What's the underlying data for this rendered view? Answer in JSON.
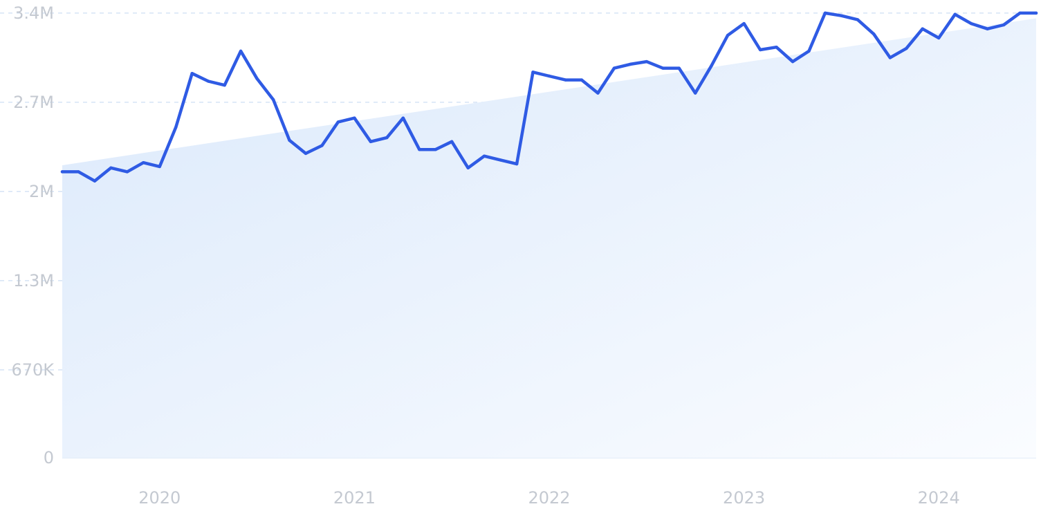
{
  "chart_data": {
    "type": "line",
    "title": "",
    "xlabel": "",
    "ylabel": "",
    "ylim": [
      0,
      3400000
    ],
    "y_ticks": [
      {
        "value": 0,
        "label": "0"
      },
      {
        "value": 670000,
        "label": "670K"
      },
      {
        "value": 1350000,
        "label": "1.3M"
      },
      {
        "value": 2030000,
        "label": "2M"
      },
      {
        "value": 2710000,
        "label": "2.7M"
      },
      {
        "value": 3390000,
        "label": "3.4M"
      }
    ],
    "x_range": [
      "2019-07",
      "2024-07"
    ],
    "x_ticks": [
      {
        "value": "2020-01",
        "label": "2020"
      },
      {
        "value": "2021-01",
        "label": "2021"
      },
      {
        "value": "2022-01",
        "label": "2022"
      },
      {
        "value": "2023-01",
        "label": "2023"
      },
      {
        "value": "2024-01",
        "label": "2024"
      }
    ],
    "grid": true,
    "legend": "none",
    "colors": {
      "line": "#2f5be4",
      "trend_fill_start": "#dbe9fb",
      "trend_fill_end": "#fafcff",
      "grid": "#d5e3f5",
      "tick_text": "#c4c9d1"
    },
    "trend": {
      "start": {
        "x": "2019-07",
        "y": 2230000
      },
      "end": {
        "x": "2024-07",
        "y": 3350000
      }
    },
    "series": [
      {
        "x": [
          "2019-07",
          "2019-08",
          "2019-09",
          "2019-10",
          "2019-11",
          "2019-12",
          "2020-01",
          "2020-02",
          "2020-03",
          "2020-04",
          "2020-05",
          "2020-06",
          "2020-07",
          "2020-08",
          "2020-09",
          "2020-10",
          "2020-11",
          "2020-12",
          "2021-01",
          "2021-02",
          "2021-03",
          "2021-04",
          "2021-05",
          "2021-06",
          "2021-07",
          "2021-08",
          "2021-09",
          "2021-10",
          "2021-11",
          "2021-12",
          "2022-01",
          "2022-02",
          "2022-03",
          "2022-04",
          "2022-05",
          "2022-06",
          "2022-07",
          "2022-08",
          "2022-09",
          "2022-10",
          "2022-11",
          "2022-12",
          "2023-01",
          "2023-02",
          "2023-03",
          "2023-04",
          "2023-05",
          "2023-06",
          "2023-07",
          "2023-08",
          "2023-09",
          "2023-10",
          "2023-11",
          "2023-12",
          "2024-01",
          "2024-02",
          "2024-03",
          "2024-04",
          "2024-05",
          "2024-06",
          "2024-07"
        ],
        "values": [
          2180000,
          2180000,
          2110000,
          2210000,
          2180000,
          2250000,
          2220000,
          2520000,
          2930000,
          2870000,
          2840000,
          3100000,
          2890000,
          2730000,
          2420000,
          2320000,
          2380000,
          2560000,
          2590000,
          2410000,
          2440000,
          2590000,
          2350000,
          2350000,
          2410000,
          2210000,
          2300000,
          2270000,
          2240000,
          2940000,
          2910000,
          2880000,
          2880000,
          2780000,
          2970000,
          3000000,
          3020000,
          2970000,
          2970000,
          2780000,
          2990000,
          3220000,
          3310000,
          3110000,
          3130000,
          3020000,
          3100000,
          3390000,
          3370000,
          3340000,
          3230000,
          3050000,
          3120000,
          3270000,
          3200000,
          3380000,
          3310000,
          3270000,
          3300000,
          3390000,
          3390000
        ]
      }
    ]
  }
}
